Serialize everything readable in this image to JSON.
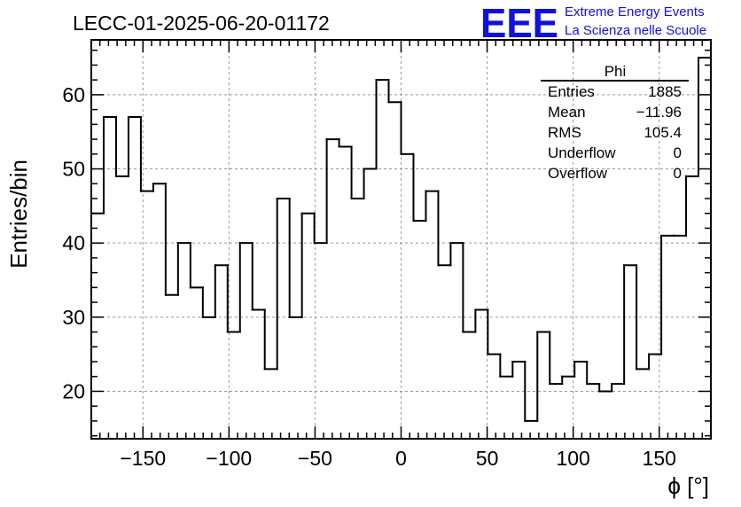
{
  "chart_data": {
    "type": "bar",
    "style": "step-histogram",
    "title": "LECC-01-2025-06-20-01172",
    "xlabel": "ϕ [°]",
    "ylabel": "Entries/bin",
    "xlim": [
      -180,
      180
    ],
    "ylim": [
      13.6,
      67.4
    ],
    "xticks": [
      -150,
      -100,
      -50,
      0,
      50,
      100,
      150
    ],
    "xtick_labels": [
      "−150",
      "−100",
      "−50",
      "0",
      "50",
      "100",
      "150"
    ],
    "yticks": [
      20,
      30,
      40,
      50,
      60
    ],
    "yticks_labels": [
      "20",
      "30",
      "40",
      "50",
      "60"
    ],
    "grid": true,
    "bin_edges_start": -180,
    "bin_width": 7.2,
    "values": [
      44,
      57,
      49,
      57,
      47,
      48,
      33,
      40,
      34,
      30,
      37,
      28,
      40,
      31,
      23,
      46,
      30,
      44,
      40,
      54,
      53,
      46,
      50,
      62,
      59,
      52,
      43,
      47,
      37,
      40,
      28,
      31,
      25,
      22,
      24,
      16,
      28,
      21,
      22,
      24,
      21,
      20,
      21,
      37,
      23,
      25,
      41,
      41,
      49,
      65
    ],
    "stats": {
      "name": "Phi",
      "rows": [
        {
          "label": "Entries",
          "value": "1885"
        },
        {
          "label": "Mean",
          "value": "−11.96"
        },
        {
          "label": "RMS",
          "value": "105.4"
        },
        {
          "label": "Underflow",
          "value": "0"
        },
        {
          "label": "Overflow",
          "value": "0"
        }
      ]
    },
    "logo": {
      "mark": "EEE",
      "line1": "Extreme Energy Events",
      "line2": "La Scienza nelle Scuole"
    },
    "colors": {
      "line": "#000000",
      "grid": "#999999",
      "logo": "#1010e0"
    }
  }
}
